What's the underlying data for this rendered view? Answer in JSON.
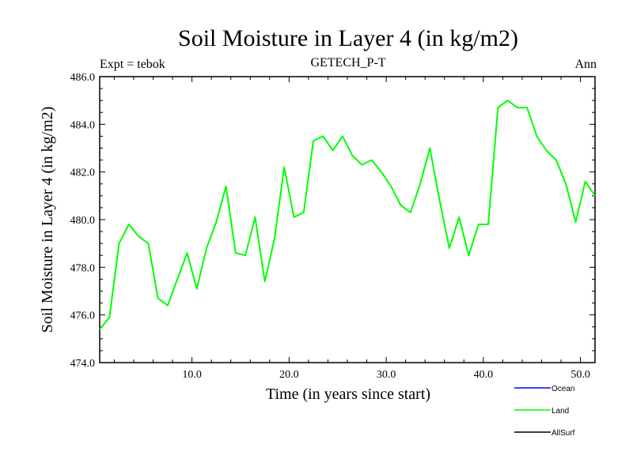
{
  "chart_data": {
    "type": "line",
    "title": "Soil Moisture in Layer 4 (in kg/m2)",
    "subtitle_left": "Expt = tebok",
    "subtitle_center": "GETECH_P-T",
    "subtitle_right": "Ann",
    "xlabel": "Time (in years since start)",
    "ylabel": "Soil Moisture in Layer 4 (in kg/m2)",
    "xlim": [
      0.5,
      51.5
    ],
    "ylim": [
      474.0,
      486.0
    ],
    "x_ticks": [
      10,
      20,
      30,
      40,
      50
    ],
    "x_tick_labels": [
      "10.0",
      "20.0",
      "30.0",
      "40.0",
      "50.0"
    ],
    "y_ticks": [
      474,
      476,
      478,
      480,
      482,
      484,
      486
    ],
    "y_tick_labels": [
      "474.0",
      "476.0",
      "478.0",
      "480.0",
      "482.0",
      "484.0",
      "486.0"
    ],
    "legend": [
      {
        "name": "Ocean",
        "color": "#0000ff"
      },
      {
        "name": "Land",
        "color": "#00ff00"
      },
      {
        "name": "AllSurf",
        "color": "#000000"
      }
    ],
    "series": [
      {
        "name": "Land",
        "color": "#00ff00",
        "x": [
          0.5,
          1.5,
          2.5,
          3.5,
          4.5,
          5.5,
          6.5,
          7.5,
          8.5,
          9.5,
          10.5,
          11.5,
          12.5,
          13.5,
          14.5,
          15.5,
          16.5,
          17.5,
          18.5,
          19.5,
          20.5,
          21.5,
          22.5,
          23.5,
          24.5,
          25.5,
          26.5,
          27.5,
          28.5,
          29.5,
          30.5,
          31.5,
          32.5,
          33.5,
          34.5,
          35.5,
          36.5,
          37.5,
          38.5,
          39.5,
          40.5,
          41.5,
          42.5,
          43.5,
          44.5,
          45.5,
          46.5,
          47.5,
          48.5,
          49.5,
          50.5,
          51.5
        ],
        "values": [
          475.4,
          475.9,
          479.0,
          479.8,
          479.3,
          479.0,
          476.7,
          476.4,
          477.5,
          478.6,
          477.1,
          478.8,
          479.9,
          481.4,
          478.6,
          478.5,
          480.1,
          477.4,
          479.2,
          482.2,
          480.1,
          480.3,
          483.3,
          483.5,
          482.9,
          483.5,
          482.7,
          482.3,
          482.5,
          482.0,
          481.4,
          480.6,
          480.3,
          481.5,
          483.0,
          480.8,
          478.8,
          480.1,
          478.5,
          479.8,
          479.8,
          484.7,
          485.0,
          484.7,
          484.7,
          483.5,
          482.9,
          482.5,
          481.5,
          479.9,
          481.6,
          481.0
        ]
      }
    ]
  }
}
